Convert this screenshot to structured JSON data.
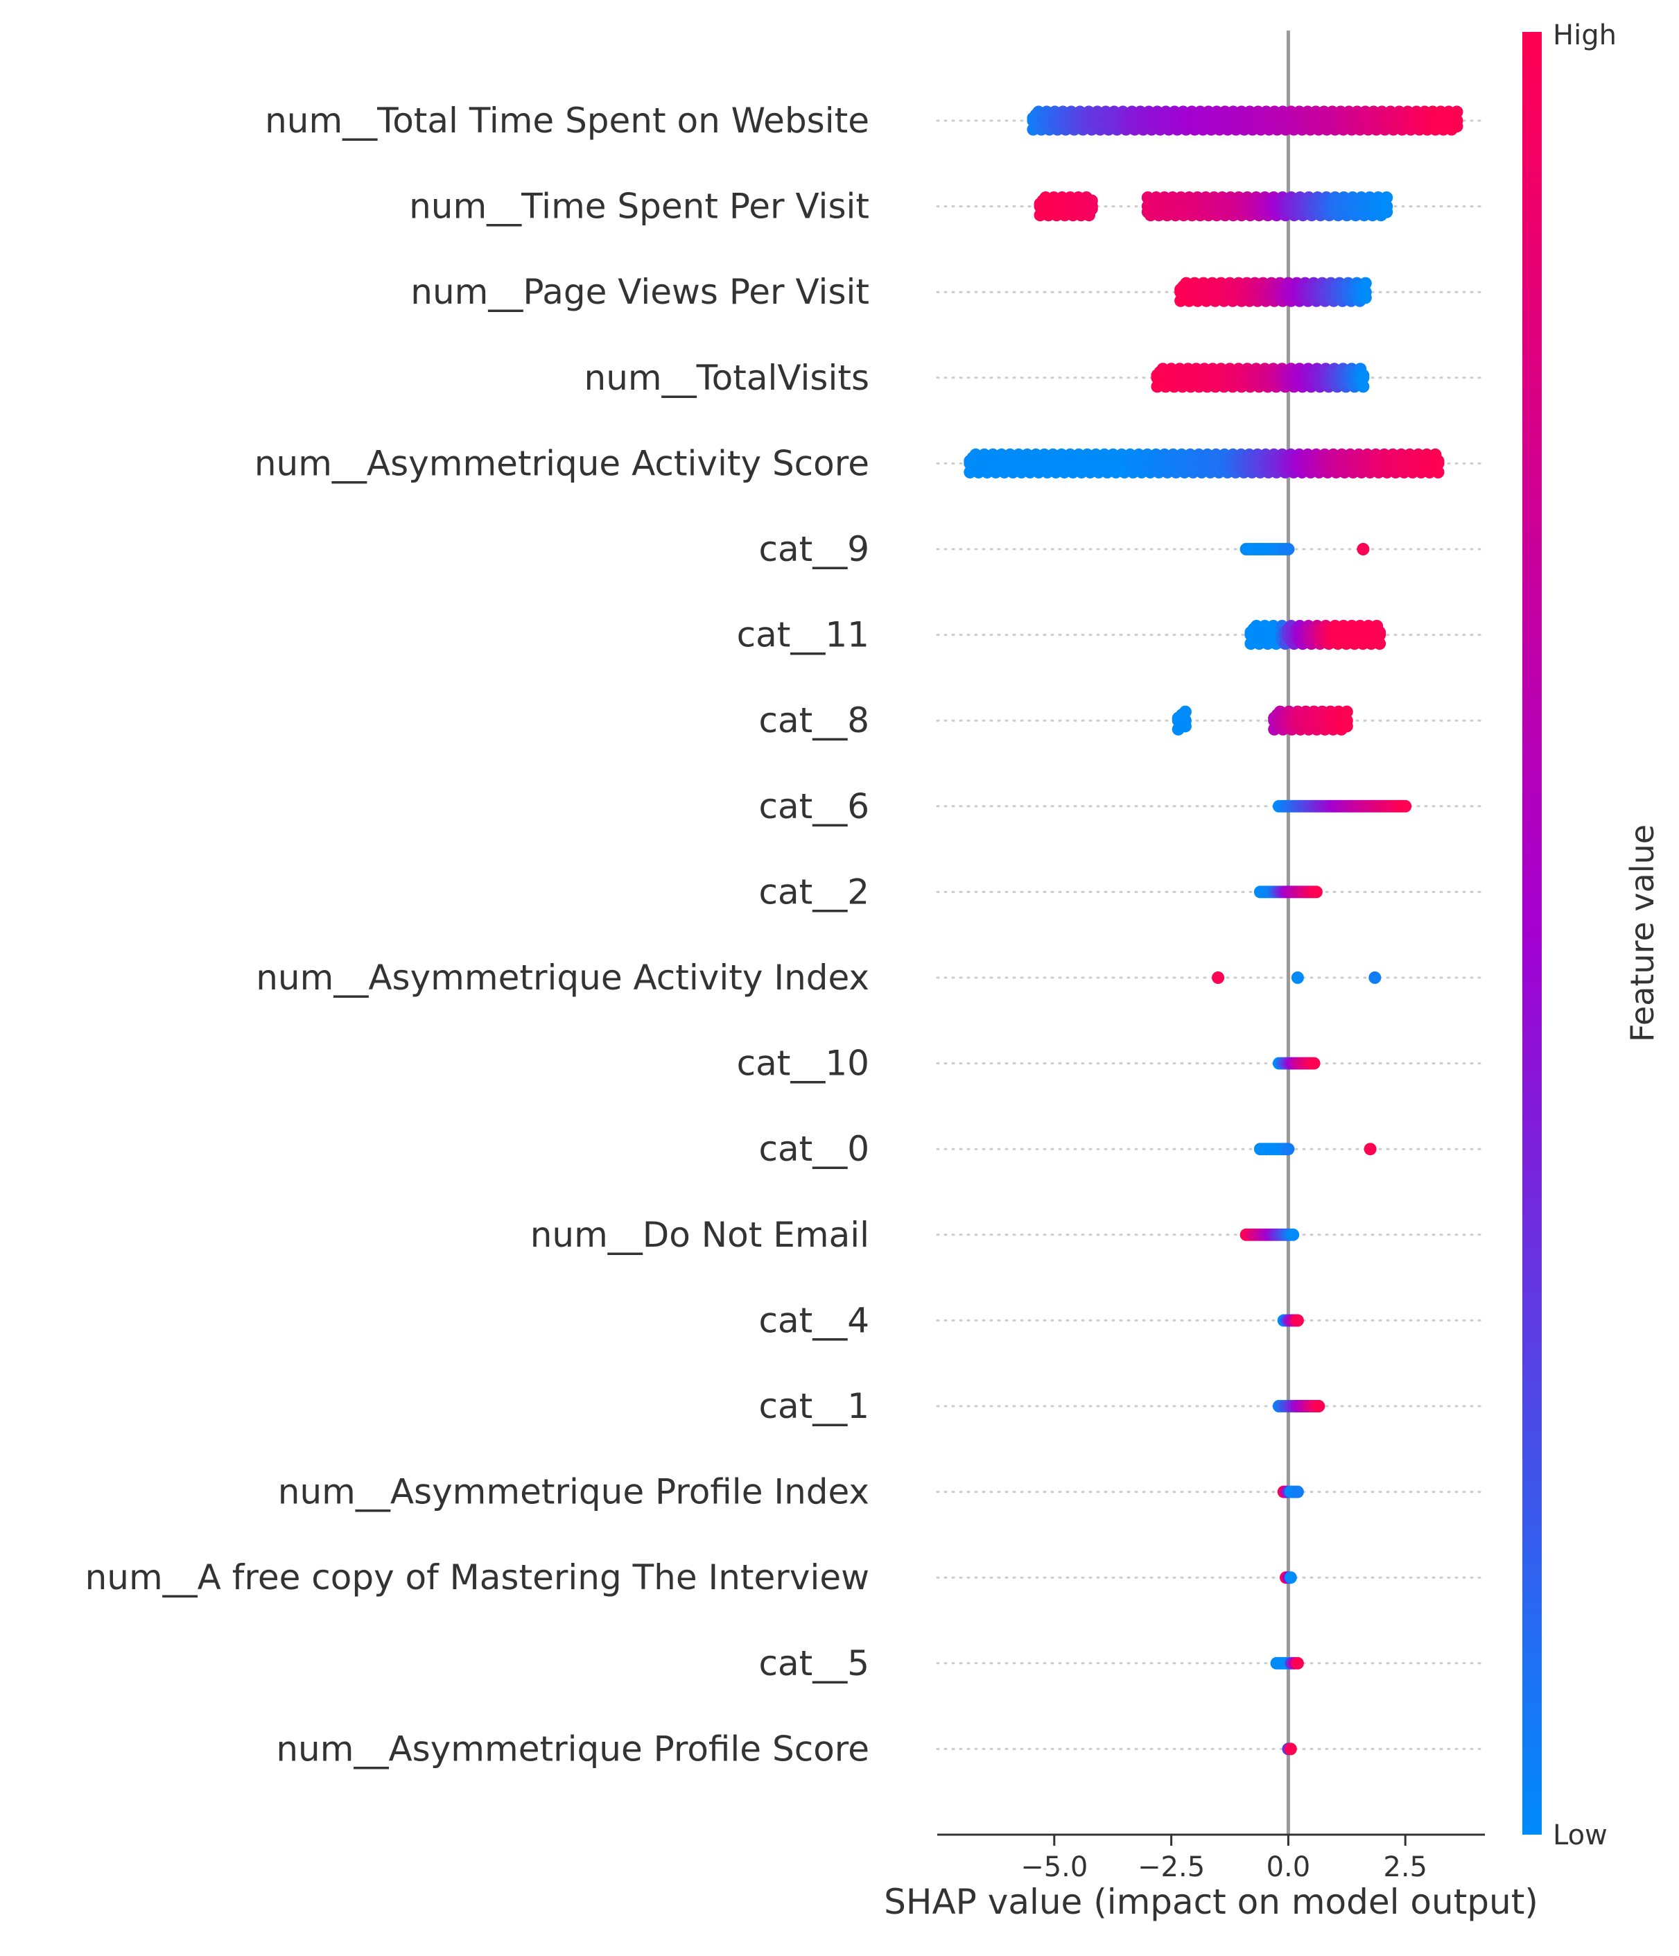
{
  "chart_data": {
    "type": "scatter",
    "subtype": "shap-beeswarm",
    "title": "",
    "xlabel": "SHAP value (impact on model output)",
    "ylabel": "",
    "xlim": [
      -7.5,
      4.2
    ],
    "xticks": [
      -5.0,
      -2.5,
      0.0,
      2.5
    ],
    "xtick_labels": [
      "−5.0",
      "−2.5",
      "0.0",
      "2.5"
    ],
    "grid": false,
    "legend": "right colorbar",
    "colorbar": {
      "title": "Feature value",
      "high_label": "High",
      "low_label": "Low",
      "low_color": "#008bfb",
      "mid_color": "#a300d0",
      "high_color": "#ff0052"
    },
    "zero_line_color": "#999999",
    "features": [
      {
        "name": "num__Total Time Spent on Website",
        "points": [
          [
            -5.45,
            0.05
          ],
          [
            -4.7,
            0.2
          ],
          [
            -4.2,
            0.3
          ],
          [
            -3.6,
            0.35
          ],
          [
            -3.4,
            0.4
          ],
          [
            -2.8,
            0.45
          ],
          [
            -2.0,
            0.5
          ],
          [
            -1.0,
            0.55
          ],
          [
            0.0,
            0.62
          ],
          [
            1.0,
            0.72
          ],
          [
            2.0,
            0.85
          ],
          [
            2.8,
            0.95
          ],
          [
            3.2,
            1.0
          ],
          [
            3.6,
            1.0
          ]
        ]
      },
      {
        "name": "num__Time Spent Per Visit",
        "points": [
          [
            -5.3,
            1.0
          ],
          [
            -4.6,
            0.98
          ],
          [
            -4.2,
            0.95
          ],
          [
            -3.0,
            0.9
          ],
          [
            -2.0,
            0.85
          ],
          [
            -1.0,
            0.75
          ],
          [
            -0.5,
            0.6
          ],
          [
            0.0,
            0.4
          ],
          [
            0.5,
            0.25
          ],
          [
            1.0,
            0.1
          ],
          [
            1.5,
            0.05
          ],
          [
            2.1,
            0.0
          ]
        ]
      },
      {
        "name": "num__Page Views Per Visit",
        "points": [
          [
            -2.3,
            1.0
          ],
          [
            -2.0,
            0.98
          ],
          [
            -1.5,
            0.95
          ],
          [
            -1.0,
            0.9
          ],
          [
            -0.6,
            0.8
          ],
          [
            -0.3,
            0.7
          ],
          [
            0.0,
            0.55
          ],
          [
            0.3,
            0.45
          ],
          [
            0.6,
            0.35
          ],
          [
            1.65,
            0.0
          ]
        ]
      },
      {
        "name": "num__TotalVisits",
        "points": [
          [
            -2.8,
            1.0
          ],
          [
            -2.2,
            0.98
          ],
          [
            -1.5,
            0.95
          ],
          [
            -1.0,
            0.9
          ],
          [
            -0.5,
            0.8
          ],
          [
            -0.2,
            0.72
          ],
          [
            0.0,
            0.6
          ],
          [
            0.3,
            0.5
          ],
          [
            0.8,
            0.35
          ],
          [
            1.6,
            0.0
          ]
        ]
      },
      {
        "name": "num__Asymmetrique Activity Score",
        "points": [
          [
            -6.8,
            0.0
          ],
          [
            -5.7,
            0.0
          ],
          [
            -4.6,
            0.0
          ],
          [
            -3.5,
            0.0
          ],
          [
            -2.4,
            0.05
          ],
          [
            -1.3,
            0.1
          ],
          [
            -0.25,
            0.35
          ],
          [
            0.9,
            0.7
          ],
          [
            2.05,
            0.9
          ],
          [
            3.2,
            1.0
          ]
        ]
      },
      {
        "name": "cat__9",
        "points": [
          [
            -0.9,
            0.0
          ],
          [
            -0.35,
            0.0
          ],
          [
            0.0,
            0.05
          ],
          [
            1.6,
            1.0
          ]
        ]
      },
      {
        "name": "cat__11",
        "points": [
          [
            -0.8,
            0.0
          ],
          [
            -0.5,
            0.0
          ],
          [
            -0.2,
            0.0
          ],
          [
            0.0,
            0.3
          ],
          [
            0.8,
            0.9
          ],
          [
            1.0,
            1.0
          ],
          [
            1.95,
            1.0
          ]
        ]
      },
      {
        "name": "cat__8",
        "points": [
          [
            -2.2,
            0.0
          ],
          [
            -2.35,
            0.0
          ],
          [
            -0.3,
            0.6
          ],
          [
            0.2,
            0.85
          ],
          [
            1.25,
            1.0
          ]
        ]
      },
      {
        "name": "cat__6",
        "points": [
          [
            -0.2,
            0.0
          ],
          [
            0.75,
            0.4
          ],
          [
            1.5,
            0.7
          ],
          [
            2.5,
            1.0
          ]
        ]
      },
      {
        "name": "cat__2",
        "points": [
          [
            -0.6,
            0.0
          ],
          [
            -0.35,
            0.05
          ],
          [
            0.0,
            0.55
          ],
          [
            0.6,
            1.0
          ]
        ]
      },
      {
        "name": "num__Asymmetrique Activity Index",
        "points": [
          [
            -1.5,
            1.0
          ],
          [
            0.2,
            0.0
          ],
          [
            1.85,
            0.05
          ]
        ]
      },
      {
        "name": "cat__10",
        "points": [
          [
            -0.2,
            0.0
          ],
          [
            0.2,
            0.7
          ],
          [
            0.55,
            1.0
          ]
        ]
      },
      {
        "name": "cat__0",
        "points": [
          [
            -0.6,
            0.0
          ],
          [
            -0.15,
            0.0
          ],
          [
            0.0,
            0.05
          ],
          [
            1.75,
            1.0
          ]
        ]
      },
      {
        "name": "num__Do Not Email",
        "points": [
          [
            -0.9,
            1.0
          ],
          [
            0.1,
            0.0
          ]
        ]
      },
      {
        "name": "cat__4",
        "points": [
          [
            -0.1,
            0.0
          ],
          [
            0.2,
            1.0
          ]
        ]
      },
      {
        "name": "cat__1",
        "points": [
          [
            -0.2,
            0.05
          ],
          [
            0.0,
            0.25
          ],
          [
            0.65,
            1.0
          ]
        ]
      },
      {
        "name": "num__Asymmetrique Profile Index",
        "points": [
          [
            -0.1,
            1.0
          ],
          [
            0.05,
            0.0
          ],
          [
            0.2,
            0.05
          ]
        ]
      },
      {
        "name": "num__A free copy of Mastering The Interview",
        "points": [
          [
            -0.05,
            1.0
          ],
          [
            0.05,
            0.0
          ]
        ]
      },
      {
        "name": "cat__5",
        "points": [
          [
            -0.25,
            0.0
          ],
          [
            0.0,
            0.0
          ],
          [
            0.2,
            1.0
          ]
        ]
      },
      {
        "name": "num__Asymmetrique Profile Score",
        "points": [
          [
            0.0,
            0.3
          ],
          [
            0.05,
            1.0
          ]
        ]
      }
    ]
  }
}
